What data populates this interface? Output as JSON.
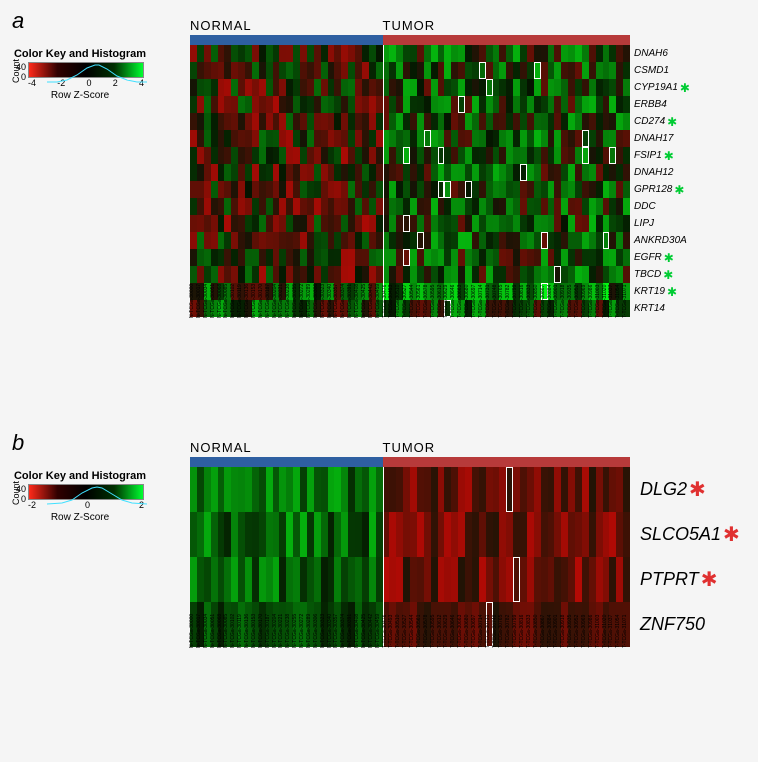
{
  "background_color": "#f5f5f5",
  "group_colors": {
    "normal": "#2e5fa1",
    "tumor": "#b73a3a"
  },
  "panel_a": {
    "label": "a",
    "header_left": "NORMAL",
    "header_right": "TUMOR",
    "colorkey": {
      "title": "Color Key\nand Histogram",
      "count_label": "Count",
      "count_max": "40",
      "count_min": "0",
      "axis_label": "Row Z-Score",
      "ticks": [
        "-4",
        "-2",
        "0",
        "2",
        "4"
      ],
      "gradient_stops": [
        "#ff2a1a",
        "#300000",
        "#000000",
        "#003000",
        "#00ff30"
      ]
    },
    "n_normal": 28,
    "n_tumor": 36,
    "rows": [
      {
        "name": "DNAH6",
        "star": false
      },
      {
        "name": "CSMD1",
        "star": false
      },
      {
        "name": "CYP19A1",
        "star": true
      },
      {
        "name": "ERBB4",
        "star": false
      },
      {
        "name": "CD274",
        "star": true
      },
      {
        "name": "DNAH17",
        "star": false
      },
      {
        "name": "FSIP1",
        "star": true
      },
      {
        "name": "DNAH12",
        "star": false
      },
      {
        "name": "GPR128",
        "star": true
      },
      {
        "name": "DDC",
        "star": false
      },
      {
        "name": "LIPJ",
        "star": false
      },
      {
        "name": "ANKRD30A",
        "star": false
      },
      {
        "name": "EGFR",
        "star": true
      },
      {
        "name": "TBCD",
        "star": true
      },
      {
        "name": "KRT19",
        "star": true
      },
      {
        "name": "KRT14",
        "star": false
      }
    ],
    "star_color": "#00cc33",
    "row_label_fontsize": 10,
    "data_seed": 1
  },
  "panel_b": {
    "label": "b",
    "header_left": "NORMAL",
    "header_right": "TUMOR",
    "colorkey": {
      "title": "Color Key\nand Histogram",
      "count_label": "Count",
      "count_max": "40",
      "count_min": "0",
      "axis_label": "Row Z-Score",
      "ticks": [
        "-2",
        "0",
        "2"
      ],
      "gradient_stops": [
        "#ff2a1a",
        "#300000",
        "#000000",
        "#003000",
        "#00ff30"
      ]
    },
    "n_normal": 28,
    "n_tumor": 36,
    "rows": [
      {
        "name": "DLG2",
        "star": true
      },
      {
        "name": "SLCO5A1",
        "star": true
      },
      {
        "name": "PTPRT",
        "star": true
      },
      {
        "name": "ZNF750",
        "star": false
      }
    ],
    "star_color": "#e03030",
    "row_label_fontsize": 18,
    "data_seed": 2
  },
  "zscore_color_fn": {
    "neg": "#ff2a1a",
    "zero": "#000000",
    "pos": "#00ff30"
  }
}
